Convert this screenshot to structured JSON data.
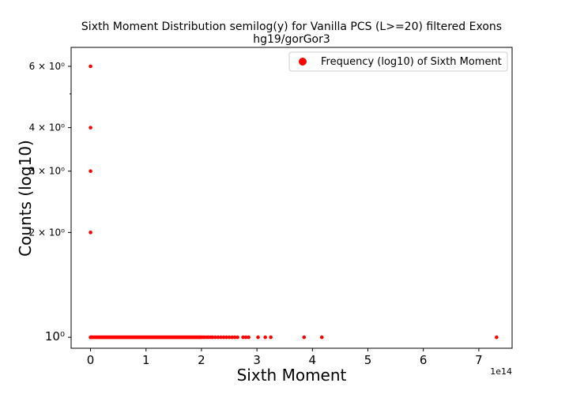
{
  "chart_data": {
    "type": "scatter",
    "title": "Sixth Moment Distribution semilog(y) for Vanilla PCS (L>=20) filtered Exons",
    "subtitle": "hg19/gorGor3",
    "xlabel": "Sixth Moment",
    "ylabel": "Counts (log10)",
    "x_offset_label": "1e14",
    "y_scale": "log",
    "xlim": [
      -0.35,
      7.6
    ],
    "ylim": [
      0.93,
      6.8
    ],
    "x_ticks": [
      0,
      1,
      2,
      3,
      4,
      5,
      6,
      7
    ],
    "x_tick_labels": [
      "0",
      "1",
      "2",
      "3",
      "4",
      "5",
      "6",
      "7"
    ],
    "y_ticks": [
      1,
      2,
      3,
      4,
      6
    ],
    "y_tick_labels": [
      "10⁰",
      "2 × 10⁰",
      "3 × 10⁰",
      "4 × 10⁰",
      "6 × 10⁰"
    ],
    "grid": false,
    "legend": {
      "position": "top-right",
      "entries": [
        "Frequency (log10) of Sixth Moment"
      ]
    },
    "series": [
      {
        "name": "Frequency (log10) of Sixth Moment",
        "color": "#ff0000",
        "x": [
          0,
          0,
          0,
          0,
          0,
          0.01,
          0.02,
          0.04,
          0.06,
          0.08,
          0.1,
          0.12,
          0.14,
          0.16,
          0.18,
          0.2,
          0.22,
          0.24,
          0.26,
          0.28,
          0.3,
          0.32,
          0.34,
          0.36,
          0.38,
          0.4,
          0.42,
          0.44,
          0.46,
          0.48,
          0.5,
          0.52,
          0.54,
          0.56,
          0.58,
          0.6,
          0.62,
          0.64,
          0.66,
          0.68,
          0.7,
          0.72,
          0.74,
          0.76,
          0.78,
          0.8,
          0.82,
          0.84,
          0.86,
          0.88,
          0.9,
          0.92,
          0.94,
          0.96,
          0.98,
          1.0,
          1.02,
          1.04,
          1.06,
          1.08,
          1.1,
          1.12,
          1.14,
          1.16,
          1.18,
          1.2,
          1.22,
          1.24,
          1.26,
          1.28,
          1.3,
          1.32,
          1.34,
          1.36,
          1.38,
          1.4,
          1.42,
          1.44,
          1.46,
          1.48,
          1.5,
          1.52,
          1.54,
          1.56,
          1.58,
          1.6,
          1.62,
          1.64,
          1.66,
          1.68,
          1.7,
          1.72,
          1.74,
          1.76,
          1.78,
          1.8,
          1.82,
          1.84,
          1.86,
          1.88,
          1.9,
          1.92,
          1.94,
          1.96,
          1.98,
          2.0,
          2.03,
          2.06,
          2.1,
          2.13,
          2.17,
          2.2,
          2.25,
          2.3,
          2.35,
          2.4,
          2.45,
          2.5,
          2.55,
          2.6,
          2.65,
          2.75,
          2.8,
          2.85,
          3.02,
          3.15,
          3.25,
          3.85,
          4.17,
          7.32
        ],
        "y": [
          6,
          4,
          3,
          2,
          1,
          1,
          1,
          1,
          1,
          1,
          1,
          1,
          1,
          1,
          1,
          1,
          1,
          1,
          1,
          1,
          1,
          1,
          1,
          1,
          1,
          1,
          1,
          1,
          1,
          1,
          1,
          1,
          1,
          1,
          1,
          1,
          1,
          1,
          1,
          1,
          1,
          1,
          1,
          1,
          1,
          1,
          1,
          1,
          1,
          1,
          1,
          1,
          1,
          1,
          1,
          1,
          1,
          1,
          1,
          1,
          1,
          1,
          1,
          1,
          1,
          1,
          1,
          1,
          1,
          1,
          1,
          1,
          1,
          1,
          1,
          1,
          1,
          1,
          1,
          1,
          1,
          1,
          1,
          1,
          1,
          1,
          1,
          1,
          1,
          1,
          1,
          1,
          1,
          1,
          1,
          1,
          1,
          1,
          1,
          1,
          1,
          1,
          1,
          1,
          1,
          1,
          1,
          1,
          1,
          1,
          1,
          1,
          1,
          1,
          1,
          1,
          1,
          1,
          1,
          1,
          1,
          1,
          1,
          1,
          1,
          1,
          1,
          1,
          1,
          1
        ]
      }
    ]
  }
}
